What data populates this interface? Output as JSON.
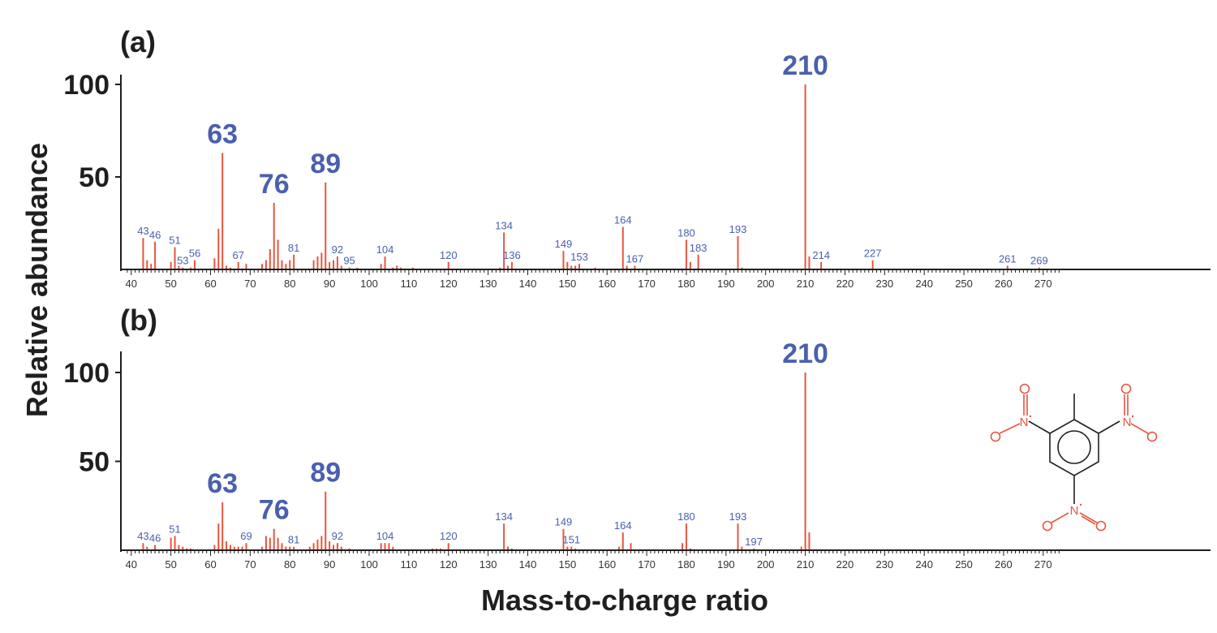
{
  "ylabel": "Relative abundance",
  "xlabel": "Mass-to-charge ratio",
  "colors": {
    "peak": "#e8553f",
    "label": "#4a5fae",
    "axis": "#1f1f1f",
    "structure": "#e8553f"
  },
  "chart_data": [
    {
      "type": "bar",
      "panel_label": "(a)",
      "xlim": [
        38,
        275
      ],
      "ylim": [
        0,
        100
      ],
      "y_ticks": [
        50,
        100
      ],
      "x_ticks": [
        40,
        50,
        60,
        70,
        80,
        90,
        100,
        110,
        120,
        130,
        140,
        150,
        160,
        170,
        180,
        190,
        200,
        210,
        220,
        230,
        240,
        250,
        260,
        270
      ],
      "peaks": [
        [
          43,
          17
        ],
        [
          44,
          5
        ],
        [
          45,
          3
        ],
        [
          46,
          15
        ],
        [
          50,
          4
        ],
        [
          51,
          12
        ],
        [
          52,
          2
        ],
        [
          53,
          1
        ],
        [
          55,
          1
        ],
        [
          56,
          5
        ],
        [
          61,
          6
        ],
        [
          62,
          22
        ],
        [
          63,
          63
        ],
        [
          64,
          2
        ],
        [
          65,
          1
        ],
        [
          67,
          4
        ],
        [
          69,
          3
        ],
        [
          73,
          3
        ],
        [
          74,
          5
        ],
        [
          75,
          11
        ],
        [
          76,
          36
        ],
        [
          77,
          16
        ],
        [
          78,
          5
        ],
        [
          79,
          3
        ],
        [
          80,
          5
        ],
        [
          81,
          8
        ],
        [
          86,
          5
        ],
        [
          87,
          7
        ],
        [
          88,
          9
        ],
        [
          89,
          47
        ],
        [
          90,
          4
        ],
        [
          91,
          5
        ],
        [
          92,
          7
        ],
        [
          93,
          2
        ],
        [
          95,
          1
        ],
        [
          97,
          1
        ],
        [
          103,
          3
        ],
        [
          104,
          7
        ],
        [
          106,
          1
        ],
        [
          107,
          2
        ],
        [
          108,
          1
        ],
        [
          111,
          1
        ],
        [
          120,
          4
        ],
        [
          133,
          1
        ],
        [
          134,
          20
        ],
        [
          135,
          2
        ],
        [
          136,
          4
        ],
        [
          149,
          10
        ],
        [
          150,
          4
        ],
        [
          151,
          2
        ],
        [
          152,
          2
        ],
        [
          153,
          3
        ],
        [
          157,
          1
        ],
        [
          164,
          23
        ],
        [
          165,
          2
        ],
        [
          167,
          2
        ],
        [
          180,
          16
        ],
        [
          181,
          4
        ],
        [
          183,
          8
        ],
        [
          193,
          18
        ],
        [
          194,
          1
        ],
        [
          210,
          100
        ],
        [
          211,
          7
        ],
        [
          214,
          4
        ],
        [
          227,
          5
        ],
        [
          261,
          2
        ],
        [
          269,
          1
        ]
      ],
      "labels": [
        {
          "x": 43,
          "text": "43"
        },
        {
          "x": 46,
          "text": "46"
        },
        {
          "x": 51,
          "text": "51"
        },
        {
          "x": 53,
          "text": "53"
        },
        {
          "x": 56,
          "text": "56"
        },
        {
          "x": 63,
          "text": "63",
          "big": true
        },
        {
          "x": 67,
          "text": "67"
        },
        {
          "x": 76,
          "text": "76",
          "big": true
        },
        {
          "x": 81,
          "text": "81"
        },
        {
          "x": 89,
          "text": "89",
          "big": true
        },
        {
          "x": 92,
          "text": "92"
        },
        {
          "x": 95,
          "text": "95"
        },
        {
          "x": 104,
          "text": "104"
        },
        {
          "x": 120,
          "text": "120"
        },
        {
          "x": 134,
          "text": "134"
        },
        {
          "x": 136,
          "text": "136"
        },
        {
          "x": 149,
          "text": "149"
        },
        {
          "x": 153,
          "text": "153"
        },
        {
          "x": 164,
          "text": "164"
        },
        {
          "x": 167,
          "text": "167"
        },
        {
          "x": 180,
          "text": "180"
        },
        {
          "x": 183,
          "text": "183"
        },
        {
          "x": 193,
          "text": "193"
        },
        {
          "x": 210,
          "text": "210",
          "big": true
        },
        {
          "x": 214,
          "text": "214"
        },
        {
          "x": 227,
          "text": "227"
        },
        {
          "x": 261,
          "text": "261"
        },
        {
          "x": 269,
          "text": "269"
        }
      ]
    },
    {
      "type": "bar",
      "panel_label": "(b)",
      "xlim": [
        38,
        275
      ],
      "ylim": [
        0,
        100
      ],
      "y_ticks": [
        50,
        100
      ],
      "x_ticks": [
        40,
        50,
        60,
        70,
        80,
        90,
        100,
        110,
        120,
        130,
        140,
        150,
        160,
        170,
        180,
        190,
        200,
        210,
        220,
        230,
        240,
        250,
        260,
        270
      ],
      "peaks": [
        [
          43,
          4
        ],
        [
          44,
          2
        ],
        [
          46,
          3
        ],
        [
          50,
          7
        ],
        [
          51,
          8
        ],
        [
          52,
          3
        ],
        [
          53,
          2
        ],
        [
          54,
          1
        ],
        [
          55,
          1
        ],
        [
          61,
          3
        ],
        [
          62,
          15
        ],
        [
          63,
          27
        ],
        [
          64,
          5
        ],
        [
          65,
          3
        ],
        [
          66,
          2
        ],
        [
          67,
          2
        ],
        [
          68,
          2
        ],
        [
          69,
          4
        ],
        [
          73,
          2
        ],
        [
          74,
          8
        ],
        [
          75,
          7
        ],
        [
          76,
          12
        ],
        [
          77,
          7
        ],
        [
          78,
          4
        ],
        [
          79,
          2
        ],
        [
          80,
          2
        ],
        [
          81,
          2
        ],
        [
          85,
          2
        ],
        [
          86,
          4
        ],
        [
          87,
          6
        ],
        [
          88,
          8
        ],
        [
          89,
          33
        ],
        [
          90,
          5
        ],
        [
          91,
          3
        ],
        [
          92,
          4
        ],
        [
          93,
          2
        ],
        [
          95,
          1
        ],
        [
          103,
          4
        ],
        [
          104,
          4
        ],
        [
          105,
          4
        ],
        [
          106,
          2
        ],
        [
          116,
          1
        ],
        [
          117,
          1
        ],
        [
          118,
          1
        ],
        [
          120,
          4
        ],
        [
          134,
          15
        ],
        [
          135,
          2
        ],
        [
          136,
          1
        ],
        [
          149,
          12
        ],
        [
          150,
          2
        ],
        [
          151,
          2
        ],
        [
          152,
          1
        ],
        [
          163,
          2
        ],
        [
          164,
          10
        ],
        [
          166,
          4
        ],
        [
          179,
          4
        ],
        [
          180,
          15
        ],
        [
          181,
          1
        ],
        [
          193,
          15
        ],
        [
          194,
          2
        ],
        [
          197,
          1
        ],
        [
          209,
          2
        ],
        [
          210,
          100
        ],
        [
          211,
          10
        ]
      ],
      "labels": [
        {
          "x": 43,
          "text": "43"
        },
        {
          "x": 46,
          "text": "46"
        },
        {
          "x": 51,
          "text": "51"
        },
        {
          "x": 63,
          "text": "63",
          "big": true
        },
        {
          "x": 69,
          "text": "69"
        },
        {
          "x": 76,
          "text": "76",
          "big": true
        },
        {
          "x": 81,
          "text": "81"
        },
        {
          "x": 89,
          "text": "89",
          "big": true
        },
        {
          "x": 92,
          "text": "92"
        },
        {
          "x": 104,
          "text": "104"
        },
        {
          "x": 120,
          "text": "120"
        },
        {
          "x": 134,
          "text": "134"
        },
        {
          "x": 149,
          "text": "149"
        },
        {
          "x": 151,
          "text": "151"
        },
        {
          "x": 164,
          "text": "164"
        },
        {
          "x": 180,
          "text": "180"
        },
        {
          "x": 193,
          "text": "193"
        },
        {
          "x": 197,
          "text": "197"
        },
        {
          "x": 210,
          "text": "210",
          "big": true
        }
      ]
    }
  ]
}
